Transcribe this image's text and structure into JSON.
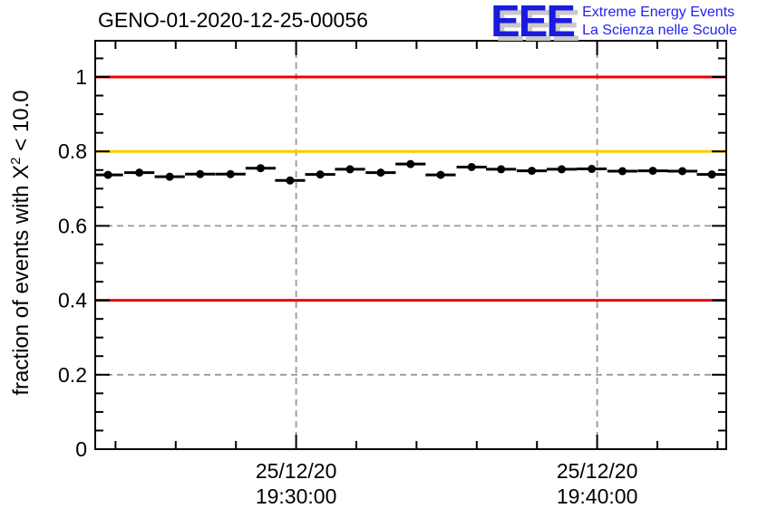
{
  "page_title": "GENO-01-2020-12-25-00056",
  "logo": {
    "acronym": "EEE",
    "tagline_line1": "Extreme Energy Events",
    "tagline_line2": "La Scienza nelle Scuole",
    "blue": "#1a1ae0",
    "tagline_blue": "#2222f0",
    "shadow": "#c8c8c8"
  },
  "ylabel_parts": {
    "pre": "fraction of events with X",
    "sup": "2",
    "post": " < 10.0"
  },
  "colors": {
    "frame": "#000000",
    "marker": "#000000",
    "grid": "#999999",
    "red_limit": "#ee0000",
    "yellow_warning": "#ffc800"
  },
  "chart_data": {
    "type": "scatter",
    "title": "GENO-01-2020-12-25-00056",
    "xlabel": "",
    "ylabel": "fraction of events with X^2 < 10.0",
    "ylim": [
      0,
      1.097
    ],
    "xlim_minutes_from_1930": [
      -6.68,
      14.3
    ],
    "grid": true,
    "y_major_ticks": [
      0,
      0.2,
      0.4,
      0.6,
      0.8,
      1.0
    ],
    "y_tick_labels": [
      "0",
      "0.2",
      "0.4",
      "0.6",
      "0.8",
      "1"
    ],
    "y_minor_step": 0.05,
    "x_minor_step_minutes": 2,
    "x_major_ticks": [
      {
        "minutes": 0,
        "date": "25/12/20",
        "time": "19:30:00"
      },
      {
        "minutes": 10,
        "date": "25/12/20",
        "time": "19:40:00"
      }
    ],
    "reference_lines": [
      {
        "y": 1.0,
        "color": "#ee0000",
        "name": "upper-limit-line"
      },
      {
        "y": 0.8,
        "color": "#ffc800",
        "name": "warning-line"
      },
      {
        "y": 0.4,
        "color": "#ee0000",
        "name": "lower-limit-line"
      }
    ],
    "series": [
      {
        "name": "fraction-of-good-chi2-events",
        "marker": "filled-circle",
        "bin_half_width_minutes": 0.5,
        "points": [
          {
            "x": -6.25,
            "y": 0.737
          },
          {
            "x": -5.21,
            "y": 0.743
          },
          {
            "x": -4.2,
            "y": 0.732
          },
          {
            "x": -3.19,
            "y": 0.739
          },
          {
            "x": -2.18,
            "y": 0.739
          },
          {
            "x": -1.18,
            "y": 0.755
          },
          {
            "x": -0.2,
            "y": 0.722
          },
          {
            "x": 0.8,
            "y": 0.738
          },
          {
            "x": 1.79,
            "y": 0.752
          },
          {
            "x": 2.81,
            "y": 0.743
          },
          {
            "x": 3.8,
            "y": 0.766
          },
          {
            "x": 4.8,
            "y": 0.737
          },
          {
            "x": 5.83,
            "y": 0.758
          },
          {
            "x": 6.81,
            "y": 0.752
          },
          {
            "x": 7.83,
            "y": 0.748
          },
          {
            "x": 8.82,
            "y": 0.752
          },
          {
            "x": 9.82,
            "y": 0.753
          },
          {
            "x": 10.84,
            "y": 0.747
          },
          {
            "x": 11.85,
            "y": 0.748
          },
          {
            "x": 12.83,
            "y": 0.747
          },
          {
            "x": 13.81,
            "y": 0.738
          }
        ]
      }
    ]
  }
}
